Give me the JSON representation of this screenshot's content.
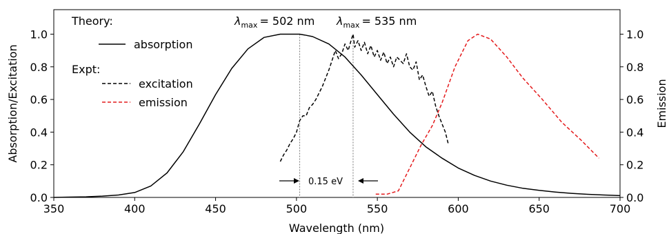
{
  "chart_data": {
    "type": "line",
    "xlabel": "Wavelength (nm)",
    "ylabel_left": "Absorption/Excitation",
    "ylabel_right": "Emission",
    "xlim": [
      350,
      700
    ],
    "ylim_left": [
      0,
      1.15
    ],
    "ylim_right": [
      0,
      1.15
    ],
    "x_ticks": [
      "350",
      "400",
      "450",
      "500",
      "550",
      "600",
      "650",
      "700"
    ],
    "x_tick_values": [
      350,
      400,
      450,
      500,
      550,
      600,
      650,
      700
    ],
    "y_ticks": [
      "0.0",
      "0.2",
      "0.4",
      "0.6",
      "0.8",
      "1.0"
    ],
    "y_tick_values": [
      0.0,
      0.2,
      0.4,
      0.6,
      0.8,
      1.0
    ],
    "legend": {
      "theory_heading": "Theory:",
      "expt_heading": "Expt:",
      "absorption": "absorption",
      "excitation": "excitation",
      "emission": "emission"
    },
    "annotations": {
      "lambda_symbol": "λ",
      "lambda_subscript": "max",
      "theory_value": "= 502 nm",
      "expt_value": "= 535 nm",
      "shift": "0.15 eV",
      "theory_lambda_max": 502,
      "expt_lambda_max": 535
    },
    "series": [
      {
        "name": "absorption",
        "style": "solid",
        "color": "#000000",
        "x": [
          350,
          360,
          370,
          380,
          390,
          400,
          410,
          420,
          430,
          440,
          450,
          460,
          470,
          480,
          490,
          495,
          500,
          502,
          505,
          510,
          520,
          530,
          540,
          550,
          560,
          570,
          580,
          590,
          600,
          610,
          620,
          630,
          640,
          650,
          660,
          670,
          680,
          690,
          700
        ],
        "y": [
          0.0,
          0.002,
          0.004,
          0.008,
          0.015,
          0.03,
          0.07,
          0.15,
          0.28,
          0.45,
          0.63,
          0.79,
          0.91,
          0.98,
          1.0,
          1.0,
          1.0,
          1.0,
          0.995,
          0.985,
          0.94,
          0.86,
          0.75,
          0.63,
          0.51,
          0.4,
          0.31,
          0.24,
          0.18,
          0.135,
          0.1,
          0.075,
          0.056,
          0.043,
          0.033,
          0.025,
          0.019,
          0.015,
          0.011
        ]
      },
      {
        "name": "excitation",
        "style": "dashed",
        "color": "#000000",
        "x": [
          490,
          492,
          494,
          496,
          498,
          500,
          502,
          504,
          506,
          508,
          510,
          512,
          514,
          516,
          518,
          520,
          522,
          524,
          526,
          528,
          530,
          532,
          534,
          535,
          536,
          538,
          540,
          542,
          544,
          546,
          548,
          550,
          552,
          554,
          556,
          558,
          560,
          562,
          564,
          566,
          568,
          570,
          572,
          574,
          576,
          578,
          580,
          582,
          584,
          586,
          588,
          590,
          592,
          594
        ],
        "y": [
          0.22,
          0.26,
          0.29,
          0.33,
          0.36,
          0.4,
          0.47,
          0.5,
          0.5,
          0.55,
          0.57,
          0.6,
          0.64,
          0.68,
          0.73,
          0.78,
          0.84,
          0.9,
          0.85,
          0.88,
          0.94,
          0.9,
          0.97,
          1.0,
          0.92,
          0.96,
          0.9,
          0.95,
          0.88,
          0.93,
          0.86,
          0.9,
          0.84,
          0.89,
          0.82,
          0.86,
          0.8,
          0.86,
          0.84,
          0.82,
          0.88,
          0.8,
          0.78,
          0.83,
          0.72,
          0.75,
          0.68,
          0.62,
          0.65,
          0.56,
          0.5,
          0.45,
          0.4,
          0.32
        ]
      },
      {
        "name": "emission",
        "style": "dashed",
        "color": "#e41a1c",
        "x": [
          549,
          556,
          563,
          570,
          577,
          584,
          590,
          598,
          606,
          612,
          620,
          630,
          640,
          652,
          664,
          676,
          687
        ],
        "y": [
          0.02,
          0.02,
          0.04,
          0.18,
          0.32,
          0.44,
          0.58,
          0.8,
          0.96,
          1.0,
          0.97,
          0.86,
          0.73,
          0.6,
          0.46,
          0.35,
          0.24
        ]
      }
    ]
  }
}
